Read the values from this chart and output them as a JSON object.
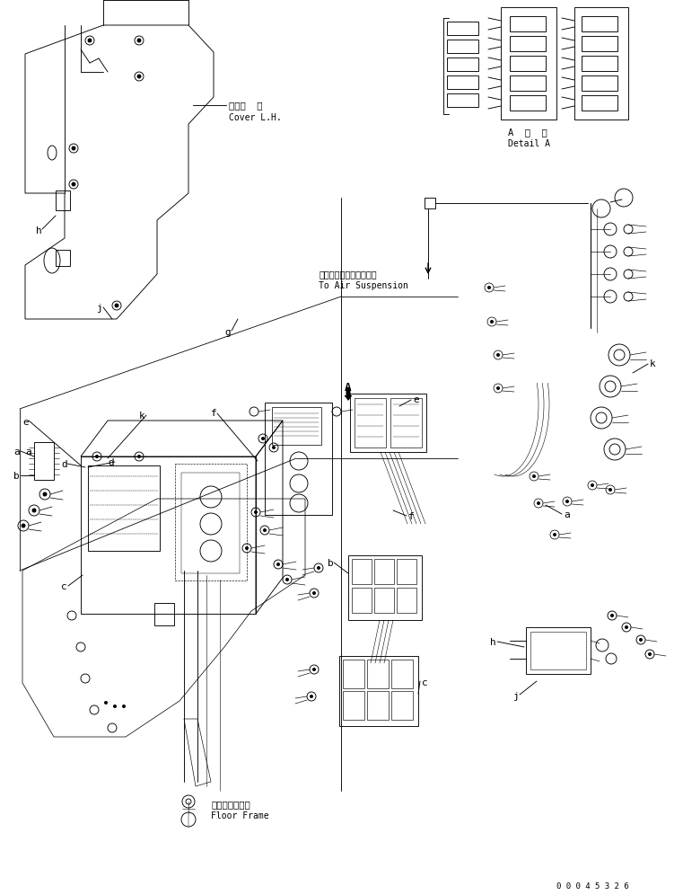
{
  "bg_color": "#ffffff",
  "line_color": "#000000",
  "fig_width": 7.61,
  "fig_height": 9.96,
  "dpi": 100,
  "part_number": "0 0 0 4 5 3 2 6",
  "lw": 0.65,
  "labels": {
    "cover_lh_jp": "カバー  左",
    "cover_lh_en": "Cover L.H.",
    "detail_a_jp": "A  詳  細",
    "detail_a_en": "Detail A",
    "air_suspension_jp": "エアーサスペンションへ",
    "air_suspension_en": "To Air Suspension",
    "floor_frame_jp": "フロアフレーム",
    "floor_frame_en": "Floor Frame"
  }
}
